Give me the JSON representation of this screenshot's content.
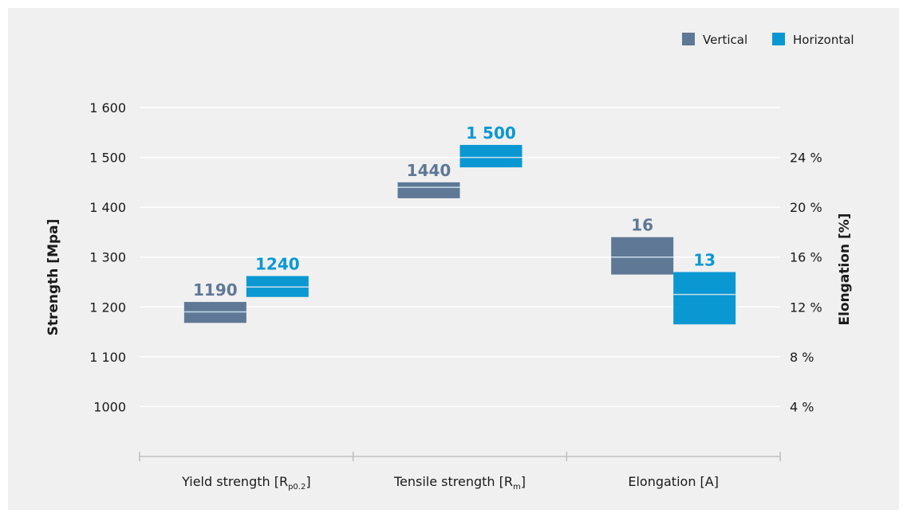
{
  "chart_data": {
    "type": "floating-bar",
    "categories": [
      "Yield strength [Rp0.2]",
      "Tensile strength [Rm]",
      "Elongation [A]"
    ],
    "category_labels": [
      {
        "main": "Yield strength [R",
        "sub": "p0.2",
        "close": "]"
      },
      {
        "main": "Tensile strength [R",
        "sub": "m",
        "close": "]"
      },
      {
        "main": "Elongation [A]",
        "sub": "",
        "close": ""
      }
    ],
    "series": [
      {
        "name": "Vertical",
        "color": "#5e7896",
        "values": [
          {
            "axis": "left",
            "low": 1168,
            "high": 1210,
            "mean": 1190,
            "label": "1190"
          },
          {
            "axis": "left",
            "low": 1418,
            "high": 1450,
            "mean": 1440,
            "label": "1440"
          },
          {
            "axis": "right",
            "low": 14.6,
            "high": 17.6,
            "mean": 16,
            "label": "16"
          }
        ]
      },
      {
        "name": "Horizontal",
        "color": "#0a98d2",
        "values": [
          {
            "axis": "left",
            "low": 1220,
            "high": 1262,
            "mean": 1240,
            "label": "1240"
          },
          {
            "axis": "left",
            "low": 1480,
            "high": 1525,
            "mean": 1500,
            "label": "1 500"
          },
          {
            "axis": "right",
            "low": 10.6,
            "high": 14.8,
            "mean": 13,
            "label": "13"
          }
        ]
      }
    ],
    "ylabel": "Strength [Mpa]",
    "y2label": "Elongation [%]",
    "ylim": [
      900,
      1600
    ],
    "y2lim": [
      0,
      28
    ],
    "yticks": [
      1000,
      1100,
      1200,
      1300,
      1400,
      1500,
      1600
    ],
    "ytick_labels": [
      "1000",
      "1 100",
      "1 200",
      "1 300",
      "1 400",
      "1 500",
      "1 600"
    ],
    "y2ticks": [
      4,
      8,
      12,
      16,
      20,
      24
    ],
    "y2tick_labels": [
      "4 %",
      "8 %",
      "12 %",
      "16 %",
      "20 %",
      "24 %"
    ],
    "grid": true,
    "legend_position": "top-right"
  },
  "colors": {
    "background": "#f0f0f0",
    "grid": "#ffffff",
    "axis": "#bfbfbf",
    "text": "#1a1a1a",
    "mean_line": "#c8dceb"
  }
}
